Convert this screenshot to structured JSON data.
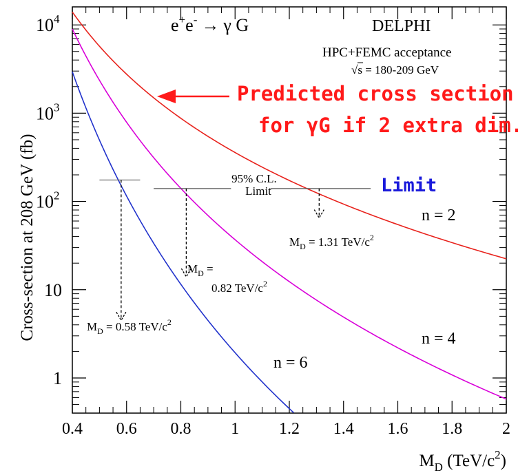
{
  "chart_data": {
    "type": "line",
    "title": "",
    "process": {
      "base": "e",
      "sup1": "+",
      "base2": "e",
      "sup2": "-",
      "arrow": "→",
      "tail": "γ G"
    },
    "experiment": "DELPHI",
    "acceptance": "HPC+FEMC acceptance",
    "energy": {
      "root": "√",
      "s": "s",
      "rest": " = 180-209 GeV"
    },
    "ylabel": "Cross-section at 208 GeV (fb)",
    "xlabel": {
      "main": "M",
      "sub": "D",
      "rest": " (TeV/c",
      "sup": "2",
      "close": ")"
    },
    "xlim": [
      0.4,
      2.0
    ],
    "ylim": [
      0.4,
      16000
    ],
    "yscale": "log",
    "x_ticks": [
      {
        "value": 0.4,
        "label": "0.4"
      },
      {
        "value": 0.6,
        "label": "0.6"
      },
      {
        "value": 0.8,
        "label": "0.8"
      },
      {
        "value": 1.0,
        "label": "1"
      },
      {
        "value": 1.2,
        "label": "1.2"
      },
      {
        "value": 1.4,
        "label": "1.4"
      },
      {
        "value": 1.6,
        "label": "1.6"
      },
      {
        "value": 1.8,
        "label": "1.8"
      },
      {
        "value": 2.0,
        "label": "2"
      }
    ],
    "y_ticks": [
      {
        "value": 1,
        "base": "1",
        "exp": ""
      },
      {
        "value": 10,
        "base": "10",
        "exp": ""
      },
      {
        "value": 100,
        "base": "10",
        "exp": "2"
      },
      {
        "value": 1000,
        "base": "10",
        "exp": "3"
      },
      {
        "value": 10000,
        "base": "10",
        "exp": "4"
      }
    ],
    "grid": false,
    "series": [
      {
        "name": "n = 2",
        "color": "#e8231d",
        "x0": 0.4,
        "y0": 14000,
        "slope": -4.0
      },
      {
        "name": "n = 4",
        "color": "#d900d9",
        "x0": 0.4,
        "y0": 9000,
        "slope": -6.0
      },
      {
        "name": "n = 6",
        "color": "#2233cc",
        "x0": 0.4,
        "y0": 2950,
        "slope": -8.0
      }
    ],
    "limit_annotation": {
      "line1": "95% C.L.",
      "line2": "Limit",
      "label": "Limit",
      "label_color": "#1a1adb"
    },
    "limits": [
      {
        "n": 6,
        "md": 0.58,
        "y": 175,
        "x_from": 0.5,
        "x_to": 0.65,
        "arrow_to": 4.5,
        "label_main": "M",
        "label_sub": "D",
        "label_rest": " = 0.58 TeV/c",
        "label_sup": "2"
      },
      {
        "n": 4,
        "md": 0.82,
        "y": 140,
        "x_from": 0.7,
        "x_to": 0.985,
        "arrow_to": 14,
        "label_main": "M",
        "label_sub": "D",
        "label_rest": " =",
        "label_line2": "0.82 TeV/c",
        "label_sup": "2"
      },
      {
        "n": 2,
        "md": 1.31,
        "y": 140,
        "x_from": 1.13,
        "x_to": 1.5,
        "arrow_to": 65,
        "label_main": "M",
        "label_sub": "D",
        "label_rest": " = 1.31 TeV/c",
        "label_sup": "2"
      }
    ],
    "prediction_annotation": {
      "line1": "Predicted cross section",
      "line2": "for γG if 2 extra dim.",
      "color": "#ff1a1a"
    }
  }
}
